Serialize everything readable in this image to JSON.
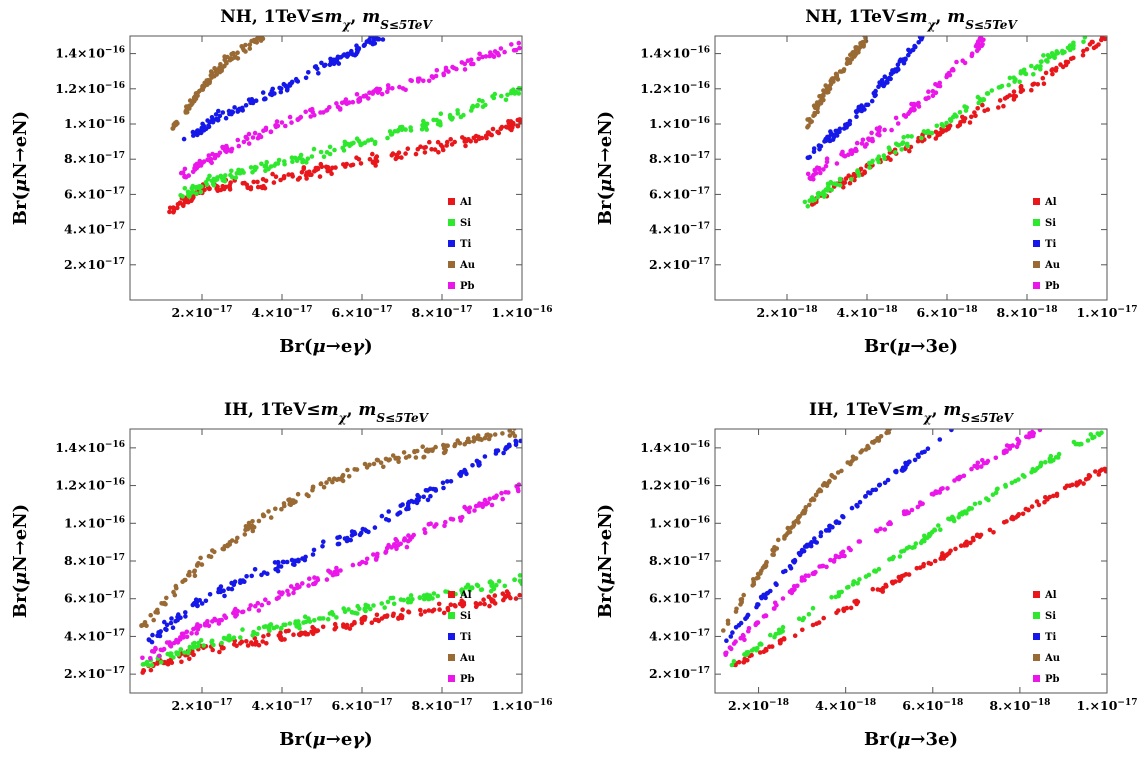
{
  "figure": {
    "panels": [
      {
        "title": "NH, 1TeV≤m_χ, m_S≤5TeV",
        "xlabel": "Br(μ→eγ)",
        "ylabel": "Br(μN→eN)"
      },
      {
        "title": "NH, 1TeV≤m_χ, m_S≤5TeV",
        "xlabel": "Br(μ→3e)",
        "ylabel": "Br(μN→eN)"
      },
      {
        "title": "IH, 1TeV≤m_χ, m_S≤5TeV",
        "xlabel": "Br(μ→eγ)",
        "ylabel": "Br(μN→eN)"
      },
      {
        "title": "IH, 1TeV≤m_χ, m_S≤5TeV",
        "xlabel": "Br(μ→3e)",
        "ylabel": "Br(μN→eN)"
      }
    ]
  },
  "chart_data": [
    {
      "type": "scatter",
      "title": "NH, 1TeV≤m_χ, m_S≤5TeV",
      "xlabel": "Br(μ→eγ)",
      "ylabel": "Br(μN→eN)",
      "xlim": [
        2e-18,
        1e-16
      ],
      "ylim": [
        0,
        1.5e-16
      ],
      "xticks": [
        {
          "v": 2e-17,
          "m": "2.×10",
          "e": "−17"
        },
        {
          "v": 4e-17,
          "m": "4.×10",
          "e": "−17"
        },
        {
          "v": 6e-17,
          "m": "6.×10",
          "e": "−17"
        },
        {
          "v": 8e-17,
          "m": "8.×10",
          "e": "−17"
        },
        {
          "v": 1e-16,
          "m": "1.×10",
          "e": "−16"
        }
      ],
      "yticks": [
        {
          "v": 2e-17,
          "m": "2.×10",
          "e": "−17"
        },
        {
          "v": 4e-17,
          "m": "4.×10",
          "e": "−17"
        },
        {
          "v": 6e-17,
          "m": "6.×10",
          "e": "−17"
        },
        {
          "v": 8e-17,
          "m": "8.×10",
          "e": "−17"
        },
        {
          "v": 1e-16,
          "m": "1.×10",
          "e": "−16"
        },
        {
          "v": 1.2e-16,
          "m": "1.2×10",
          "e": "−16"
        },
        {
          "v": 1.4e-16,
          "m": "1.4×10",
          "e": "−16"
        }
      ],
      "legend": "bottom-right",
      "series": [
        {
          "name": "Al",
          "color": "#e8171b",
          "x": [
            1.2e-17,
            2e-17,
            3.5e-17,
            5e-17,
            7e-17,
            9e-17,
            1e-16
          ],
          "y": [
            5e-17,
            6.3e-17,
            6.6e-17,
            7.4e-17,
            8.3e-17,
            9.2e-17,
            1.02e-16
          ]
        },
        {
          "name": "Si",
          "color": "#2ee82e",
          "x": [
            1.5e-17,
            2.5e-17,
            4e-17,
            6e-17,
            8e-17,
            1e-16
          ],
          "y": [
            6e-17,
            7e-17,
            7.8e-17,
            9e-17,
            1.02e-16,
            1.2e-16
          ]
        },
        {
          "name": "Ti",
          "color": "#1518e8",
          "x": [
            1.5e-17,
            2.5e-17,
            4e-17,
            5.5e-17,
            6.5e-17
          ],
          "y": [
            9e-17,
            1.05e-16,
            1.2e-16,
            1.38e-16,
            1.5e-16
          ]
        },
        {
          "name": "Au",
          "color": "#9a6a34",
          "x": [
            1.2e-17,
            2e-17,
            2.6e-17,
            3.5e-17
          ],
          "y": [
            9.6e-17,
            1.2e-16,
            1.36e-16,
            1.5e-16
          ]
        },
        {
          "name": "Pb",
          "color": "#ea16ea",
          "x": [
            1.5e-17,
            2.5e-17,
            4e-17,
            6e-17,
            8e-17,
            1e-16
          ],
          "y": [
            7e-17,
            8.5e-17,
            1e-16,
            1.15e-16,
            1.3e-16,
            1.45e-16
          ]
        }
      ]
    },
    {
      "type": "scatter",
      "title": "NH, 1TeV≤m_χ, m_S≤5TeV",
      "xlabel": "Br(μ→3e)",
      "ylabel": "Br(μN→eN)",
      "xlim": [
        2e-19,
        1e-17
      ],
      "ylim": [
        0,
        1.5e-16
      ],
      "xticks": [
        {
          "v": 2e-18,
          "m": "2.×10",
          "e": "−18"
        },
        {
          "v": 4e-18,
          "m": "4.×10",
          "e": "−18"
        },
        {
          "v": 6e-18,
          "m": "6.×10",
          "e": "−18"
        },
        {
          "v": 8e-18,
          "m": "8.×10",
          "e": "−18"
        },
        {
          "v": 1e-17,
          "m": "1.×10",
          "e": "−17"
        }
      ],
      "yticks": [
        {
          "v": 2e-17,
          "m": "2.×10",
          "e": "−17"
        },
        {
          "v": 4e-17,
          "m": "4.×10",
          "e": "−17"
        },
        {
          "v": 6e-17,
          "m": "6.×10",
          "e": "−17"
        },
        {
          "v": 8e-17,
          "m": "8.×10",
          "e": "−17"
        },
        {
          "v": 1e-16,
          "m": "1.×10",
          "e": "−16"
        },
        {
          "v": 1.2e-16,
          "m": "1.2×10",
          "e": "−16"
        },
        {
          "v": 1.4e-16,
          "m": "1.4×10",
          "e": "−16"
        }
      ],
      "legend": "bottom-right",
      "series": [
        {
          "name": "Al",
          "color": "#e8171b",
          "x": [
            2.6e-18,
            4e-18,
            6e-18,
            8e-18,
            1e-17
          ],
          "y": [
            5.6e-17,
            7.5e-17,
            9.8e-17,
            1.2e-16,
            1.5e-16
          ]
        },
        {
          "name": "Si",
          "color": "#2ee82e",
          "x": [
            2.4e-18,
            4e-18,
            6e-18,
            8e-18,
            9.5e-18
          ],
          "y": [
            5.4e-17,
            7.7e-17,
            1.02e-16,
            1.3e-16,
            1.5e-16
          ]
        },
        {
          "name": "Ti",
          "color": "#1518e8",
          "x": [
            2.5e-18,
            3.5e-18,
            4.5e-18,
            5.4e-18
          ],
          "y": [
            8.1e-17,
            1e-16,
            1.25e-16,
            1.5e-16
          ]
        },
        {
          "name": "Au",
          "color": "#9a6a34",
          "x": [
            2.5e-18,
            3e-18,
            3.6e-18,
            4e-18
          ],
          "y": [
            9.9e-17,
            1.2e-16,
            1.38e-16,
            1.5e-16
          ]
        },
        {
          "name": "Pb",
          "color": "#ea16ea",
          "x": [
            2.5e-18,
            4e-18,
            5.5e-18,
            7e-18
          ],
          "y": [
            7e-17,
            9e-17,
            1.15e-16,
            1.5e-16
          ]
        }
      ]
    },
    {
      "type": "scatter",
      "title": "IH, 1TeV≤m_χ, m_S≤5TeV",
      "xlabel": "Br(μ→eγ)",
      "ylabel": "Br(μN→eN)",
      "xlim": [
        2e-18,
        1e-16
      ],
      "ylim": [
        1e-17,
        1.5e-16
      ],
      "xticks": [
        {
          "v": 2e-17,
          "m": "2.×10",
          "e": "−17"
        },
        {
          "v": 4e-17,
          "m": "4.×10",
          "e": "−17"
        },
        {
          "v": 6e-17,
          "m": "6.×10",
          "e": "−17"
        },
        {
          "v": 8e-17,
          "m": "8.×10",
          "e": "−17"
        },
        {
          "v": 1e-16,
          "m": "1.×10",
          "e": "−16"
        }
      ],
      "yticks": [
        {
          "v": 2e-17,
          "m": "2.×10",
          "e": "−17"
        },
        {
          "v": 4e-17,
          "m": "4.×10",
          "e": "−17"
        },
        {
          "v": 6e-17,
          "m": "6.×10",
          "e": "−17"
        },
        {
          "v": 8e-17,
          "m": "8.×10",
          "e": "−17"
        },
        {
          "v": 1e-16,
          "m": "1.×10",
          "e": "−16"
        },
        {
          "v": 1.2e-16,
          "m": "1.2×10",
          "e": "−16"
        },
        {
          "v": 1.4e-16,
          "m": "1.4×10",
          "e": "−16"
        }
      ],
      "legend": "bottom-right",
      "series": [
        {
          "name": "Al",
          "color": "#e8171b",
          "x": [
            5e-18,
            2e-17,
            4e-17,
            6e-17,
            8e-17,
            1e-16
          ],
          "y": [
            2.2e-17,
            3.3e-17,
            4e-17,
            4.8e-17,
            5.5e-17,
            6.2e-17
          ]
        },
        {
          "name": "Si",
          "color": "#2ee82e",
          "x": [
            5e-18,
            2e-17,
            4e-17,
            6e-17,
            8e-17,
            1e-16
          ],
          "y": [
            2.5e-17,
            3.6e-17,
            4.6e-17,
            5.5e-17,
            6.3e-17,
            7e-17
          ]
        },
        {
          "name": "Ti",
          "color": "#1518e8",
          "x": [
            5e-18,
            2e-17,
            4e-17,
            6e-17,
            8e-17,
            1e-16
          ],
          "y": [
            3.5e-17,
            6e-17,
            7.8e-17,
            9.5e-17,
            1.2e-16,
            1.45e-16
          ]
        },
        {
          "name": "Au",
          "color": "#9a6a34",
          "x": [
            5e-18,
            2e-17,
            4e-17,
            6e-17,
            8e-17,
            1e-16
          ],
          "y": [
            4.5e-17,
            8e-17,
            1.1e-16,
            1.3e-16,
            1.4e-16,
            1.5e-16
          ]
        },
        {
          "name": "Pb",
          "color": "#ea16ea",
          "x": [
            5e-18,
            2e-17,
            4e-17,
            6e-17,
            8e-17,
            1e-16
          ],
          "y": [
            2.8e-17,
            4.6e-17,
            6.2e-17,
            8e-17,
            1e-16,
            1.2e-16
          ]
        }
      ]
    },
    {
      "type": "scatter",
      "title": "IH, 1TeV≤m_χ, m_S≤5TeV",
      "xlabel": "Br(μ→3e)",
      "ylabel": "Br(μN→eN)",
      "xlim": [
        1e-18,
        1e-17
      ],
      "ylim": [
        1e-17,
        1.5e-16
      ],
      "xticks": [
        {
          "v": 2e-18,
          "m": "2.×10",
          "e": "−18"
        },
        {
          "v": 4e-18,
          "m": "4.×10",
          "e": "−18"
        },
        {
          "v": 6e-18,
          "m": "6.×10",
          "e": "−18"
        },
        {
          "v": 8e-18,
          "m": "8.×10",
          "e": "−18"
        },
        {
          "v": 1e-17,
          "m": "1.×10",
          "e": "−17"
        }
      ],
      "yticks": [
        {
          "v": 2e-17,
          "m": "2.×10",
          "e": "−17"
        },
        {
          "v": 4e-17,
          "m": "4.×10",
          "e": "−17"
        },
        {
          "v": 6e-17,
          "m": "6.×10",
          "e": "−17"
        },
        {
          "v": 8e-17,
          "m": "8.×10",
          "e": "−17"
        },
        {
          "v": 1e-16,
          "m": "1.×10",
          "e": "−16"
        },
        {
          "v": 1.2e-16,
          "m": "1.2×10",
          "e": "−16"
        },
        {
          "v": 1.4e-16,
          "m": "1.4×10",
          "e": "−16"
        }
      ],
      "legend": "bottom-right",
      "series": [
        {
          "name": "Al",
          "color": "#e8171b",
          "x": [
            1.4e-18,
            4e-18,
            6e-18,
            8e-18,
            1e-17
          ],
          "y": [
            2.4e-17,
            5.5e-17,
            8e-17,
            1.05e-16,
            1.3e-16
          ]
        },
        {
          "name": "Si",
          "color": "#2ee82e",
          "x": [
            1.4e-18,
            4e-18,
            6e-18,
            8e-18,
            1e-17
          ],
          "y": [
            2.6e-17,
            6.5e-17,
            9.5e-17,
            1.25e-16,
            1.5e-16
          ]
        },
        {
          "name": "Ti",
          "color": "#1518e8",
          "x": [
            1.2e-18,
            3e-18,
            4.5e-18,
            6.5e-18
          ],
          "y": [
            3.6e-17,
            8.5e-17,
            1.15e-16,
            1.5e-16
          ]
        },
        {
          "name": "Au",
          "color": "#9a6a34",
          "x": [
            1.2e-18,
            2.5e-18,
            3.5e-18,
            5e-18
          ],
          "y": [
            4.5e-17,
            9e-17,
            1.2e-16,
            1.5e-16
          ]
        },
        {
          "name": "Pb",
          "color": "#ea16ea",
          "x": [
            1.2e-18,
            3e-18,
            5e-18,
            7e-18,
            8.5e-18
          ],
          "y": [
            3e-17,
            7e-17,
            1e-16,
            1.3e-16,
            1.5e-16
          ]
        }
      ]
    }
  ]
}
